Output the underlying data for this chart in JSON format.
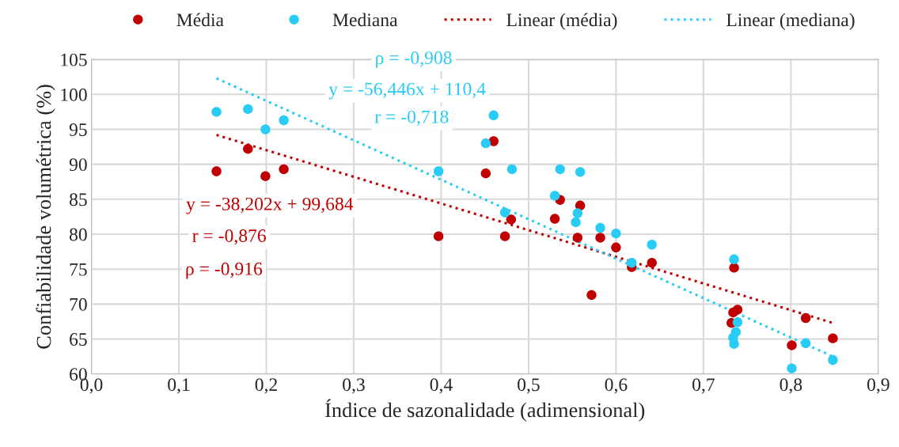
{
  "chart_data": {
    "type": "scatter",
    "xlabel": "Índice de sazonalidade (adimensional)",
    "ylabel": "Confiabilidade volumétrica (%)",
    "xlim": [
      0,
      0.9
    ],
    "xticks": [
      {
        "value": 0,
        "label": "0,0"
      },
      {
        "value": 0.1,
        "label": "0,1"
      },
      {
        "value": 0.2,
        "label": "0,2"
      },
      {
        "value": 0.3,
        "label": "0,3"
      },
      {
        "value": 0.4,
        "label": "0,4"
      },
      {
        "value": 0.5,
        "label": "0,5"
      },
      {
        "value": 0.6,
        "label": "0,6"
      },
      {
        "value": 0.7,
        "label": "0,7"
      },
      {
        "value": 0.8,
        "label": "0,8"
      },
      {
        "value": 0.9,
        "label": "0,9"
      }
    ],
    "ylim": [
      60,
      105
    ],
    "yticks": [
      60,
      65,
      70,
      75,
      80,
      85,
      90,
      95,
      100,
      105
    ],
    "grid": true,
    "legend": "top",
    "marker": "circle",
    "series": [
      {
        "name": "Média",
        "color": "#c00000",
        "x": [
          0.143,
          0.179,
          0.199,
          0.22,
          0.46,
          0.451,
          0.397,
          0.473,
          0.48,
          0.536,
          0.559,
          0.53,
          0.556,
          0.582,
          0.6,
          0.572,
          0.618,
          0.641,
          0.735,
          0.739,
          0.734,
          0.732,
          0.817,
          0.801,
          0.848
        ],
        "values": [
          89,
          92.2,
          88.3,
          89.3,
          93.3,
          88.7,
          79.7,
          79.7,
          82.1,
          84.9,
          84.1,
          82.2,
          79.5,
          79.5,
          78.1,
          71.3,
          75.3,
          75.9,
          75.2,
          69.2,
          68.8,
          67.3,
          68.0,
          64.1,
          65.1
        ]
      },
      {
        "name": "Mediana",
        "color": "#29ccf5",
        "x": [
          0.143,
          0.179,
          0.199,
          0.22,
          0.397,
          0.46,
          0.451,
          0.481,
          0.536,
          0.559,
          0.53,
          0.473,
          0.556,
          0.554,
          0.582,
          0.6,
          0.641,
          0.618,
          0.735,
          0.739,
          0.737,
          0.734,
          0.735,
          0.817,
          0.801,
          0.848
        ],
        "values": [
          97.5,
          97.9,
          95.0,
          96.3,
          89,
          97.0,
          93,
          89.3,
          89.3,
          88.9,
          85.5,
          83.1,
          83.0,
          81.7,
          80.9,
          80.1,
          78.5,
          75.9,
          76.4,
          67.4,
          66.0,
          65.2,
          64.3,
          64.4,
          60.8,
          62.0
        ]
      },
      {
        "name": "Linear (média)",
        "color": "#c00000",
        "type": "line",
        "line_style": "dotted",
        "marker": "none",
        "x": [
          0.143,
          0.848
        ],
        "values": [
          94.2,
          67.3
        ]
      },
      {
        "name": "Linear (mediana)",
        "color": "#29ccf5",
        "type": "line",
        "line_style": "dotted",
        "marker": "none",
        "x": [
          0.143,
          0.848
        ],
        "values": [
          102.3,
          62.5
        ]
      }
    ],
    "annotations": [
      "y = -38,202x + 99,684",
      "r = -0,876",
      "ρ = -0,916",
      "ρ = -0,908",
      "y = -56,446x + 110,4",
      "r = -0,718"
    ]
  }
}
